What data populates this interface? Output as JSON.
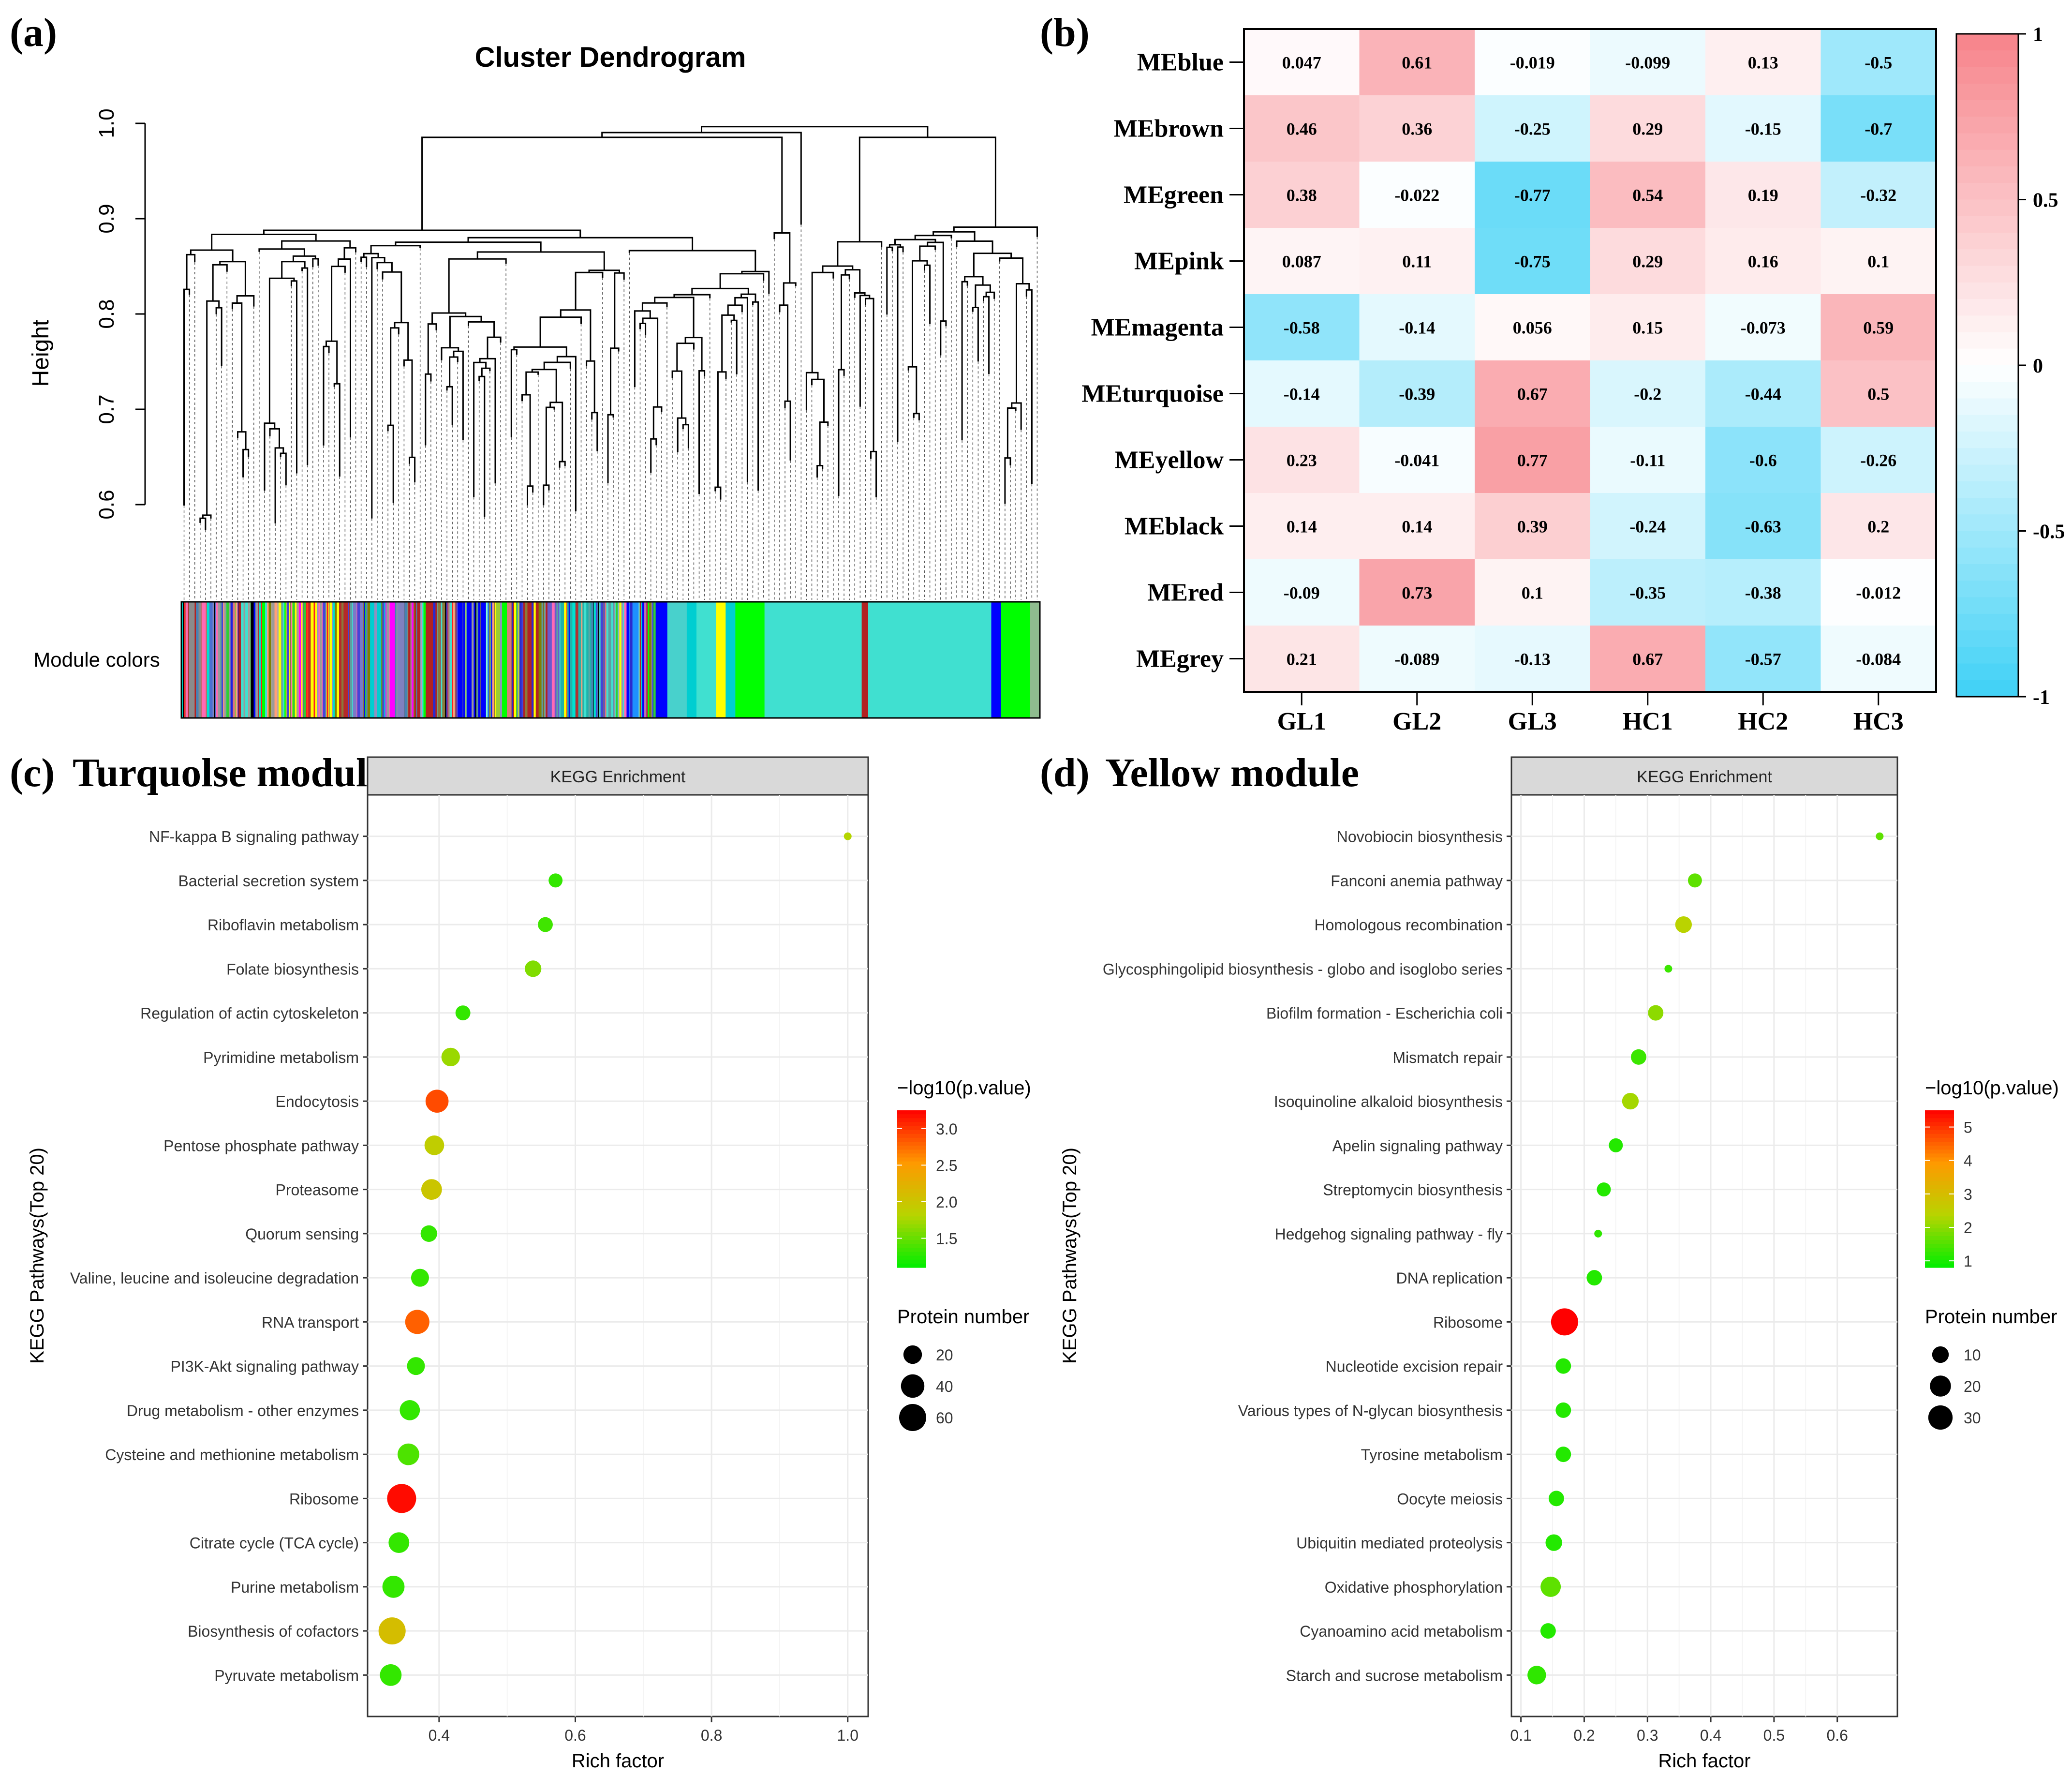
{
  "panel_labels": {
    "a": "(a)",
    "b": "(b)",
    "c": "(c)",
    "d": "(d)"
  },
  "chart_data": [
    {
      "type": "dendrogram",
      "title": "Cluster Dendrogram",
      "ylabel": "Height",
      "ylim": [
        0.5,
        1.0
      ],
      "yticks": [
        0.6,
        0.7,
        0.8,
        0.9,
        1.0
      ],
      "ytick_labels": [
        "0.6",
        "0.7",
        "0.8",
        "0.9",
        "1.0"
      ],
      "color_bar_label": "Module colors",
      "module_colors": [
        "#9a9a9a",
        "#66a3a3",
        "#d97a7a",
        "#4444d8",
        "#8a7a3a",
        "#00e0d0",
        "#9090c0",
        "#ff2020",
        "#2a2ad0",
        "#ffff00",
        "#b03030",
        "#5f9ea0",
        "#ff00ff",
        "#7fffd4",
        "#b22222",
        "#000000",
        "#0000ff",
        "#32cd32",
        "#40e0d0",
        "#ffa07a",
        "#00ff00",
        "#808000",
        "#4682b4",
        "#ff69b4"
      ],
      "color_segments": [
        {
          "color": "#8b8b8b",
          "w": 6
        },
        {
          "color": "#c86464",
          "w": 2
        },
        {
          "color": "#4a6fd0",
          "w": 3
        },
        {
          "color": "#9a9a9a",
          "w": 4
        },
        {
          "color": "#2020e0",
          "w": 3
        },
        {
          "color": "#40e0d0",
          "w": 5
        },
        {
          "color": "#ff1a1a",
          "w": 4
        },
        {
          "color": "#a9a9a9",
          "w": 3
        },
        {
          "color": "#ffff00",
          "w": 18
        },
        {
          "color": "#b52a2a",
          "w": 4
        },
        {
          "color": "#7a7ac8",
          "w": 6
        },
        {
          "color": "#00ced1",
          "w": 5
        },
        {
          "color": "#ff00ff",
          "w": 3
        },
        {
          "color": "#8080c0",
          "w": 4
        },
        {
          "color": "#b22222",
          "w": 10
        },
        {
          "color": "#40e0d0",
          "w": 4
        },
        {
          "color": "#0000ff",
          "w": 12
        },
        {
          "color": "#9acd32",
          "w": 3
        },
        {
          "color": "#00ff00",
          "w": 3
        },
        {
          "color": "#ffff00",
          "w": 3
        },
        {
          "color": "#b22222",
          "w": 8
        },
        {
          "color": "#6a5acd",
          "w": 4
        },
        {
          "color": "#20b2aa",
          "w": 10
        },
        {
          "color": "#000000",
          "w": 2
        },
        {
          "color": "#40e0d0",
          "w": 8
        },
        {
          "color": "#1e90ff",
          "w": 5
        },
        {
          "color": "#0000ff",
          "w": 8
        },
        {
          "color": "#48d1cc",
          "w": 6
        },
        {
          "color": "#00ced1",
          "w": 3
        },
        {
          "color": "#40e0d0",
          "w": 6
        },
        {
          "color": "#ffff00",
          "w": 3
        },
        {
          "color": "#00ced1",
          "w": 3
        },
        {
          "color": "#00ff00",
          "w": 9
        },
        {
          "color": "#40e0d0",
          "w": 30
        },
        {
          "color": "#b22222",
          "w": 2
        },
        {
          "color": "#40e0d0",
          "w": 38
        },
        {
          "color": "#0000ff",
          "w": 3
        },
        {
          "color": "#00ff00",
          "w": 9
        },
        {
          "color": "#8fbc8f",
          "w": 3
        }
      ],
      "leaf_count": 160
    },
    {
      "type": "heatmap",
      "rows": [
        "MEblue",
        "MEbrown",
        "MEgreen",
        "MEpink",
        "MEmagenta",
        "MEturquoise",
        "MEyellow",
        "MEblack",
        "MEred",
        "MEgrey"
      ],
      "columns": [
        "GL1",
        "GL2",
        "GL3",
        "HC1",
        "HC2",
        "HC3"
      ],
      "values": [
        [
          0.047,
          0.61,
          -0.019,
          -0.099,
          0.13,
          -0.5
        ],
        [
          0.46,
          0.36,
          -0.25,
          0.29,
          -0.15,
          -0.7
        ],
        [
          0.38,
          -0.022,
          -0.77,
          0.54,
          0.19,
          -0.32
        ],
        [
          0.087,
          0.11,
          -0.75,
          0.29,
          0.16,
          0.1
        ],
        [
          -0.58,
          -0.14,
          0.056,
          0.15,
          -0.073,
          0.59
        ],
        [
          -0.14,
          -0.39,
          0.67,
          -0.2,
          -0.44,
          0.5
        ],
        [
          0.23,
          -0.041,
          0.77,
          -0.11,
          -0.6,
          -0.26
        ],
        [
          0.14,
          0.14,
          0.39,
          -0.24,
          -0.63,
          0.2
        ],
        [
          -0.09,
          0.73,
          0.1,
          -0.35,
          -0.38,
          -0.012
        ],
        [
          0.21,
          -0.089,
          -0.13,
          0.67,
          -0.57,
          -0.084
        ]
      ],
      "labels": [
        [
          "0.047",
          "0.61",
          "-0.019",
          "-0.099",
          "0.13",
          "-0.5"
        ],
        [
          "0.46",
          "0.36",
          "-0.25",
          "0.29",
          "-0.15",
          "-0.7"
        ],
        [
          "0.38",
          "-0.022",
          "-0.77",
          "0.54",
          "0.19",
          "-0.32"
        ],
        [
          "0.087",
          "0.11",
          "-0.75",
          "0.29",
          "0.16",
          "0.1"
        ],
        [
          "-0.58",
          "-0.14",
          "0.056",
          "0.15",
          "-0.073",
          "0.59"
        ],
        [
          "-0.14",
          "-0.39",
          "0.67",
          "-0.2",
          "-0.44",
          "0.5"
        ],
        [
          "0.23",
          "-0.041",
          "0.77",
          "-0.11",
          "-0.6",
          "-0.26"
        ],
        [
          "0.14",
          "0.14",
          "0.39",
          "-0.24",
          "-0.63",
          "0.2"
        ],
        [
          "-0.09",
          "0.73",
          "0.1",
          "-0.35",
          "-0.38",
          "-0.012"
        ],
        [
          "0.21",
          "-0.089",
          "-0.13",
          "0.67",
          "-0.57",
          "-0.084"
        ]
      ],
      "colorscale": {
        "min": -1,
        "max": 1,
        "low": "#3fd1f6",
        "mid": "#ffffff",
        "high": "#f7838a"
      },
      "colorbar_ticks": [
        1,
        0.5,
        0,
        -0.5,
        -1
      ],
      "colorbar_tick_labels": [
        "1",
        "0.5",
        "0",
        "-0.5",
        "-1"
      ]
    },
    {
      "type": "scatter",
      "module_title": "Turquolse module",
      "strip_title": "KEGG Enrichment",
      "xlabel": "Rich factor",
      "ylabel": "KEGG Pathways(Top 20)",
      "xlim": [
        0.295,
        1.03
      ],
      "xticks": [
        0.4,
        0.6,
        0.8,
        1.0
      ],
      "xtick_labels": [
        "0.4",
        "0.6",
        "0.8",
        "1.0"
      ],
      "pathways": [
        "NF-kappa B signaling pathway",
        "Bacterial secretion system",
        "Riboflavin metabolism",
        "Folate biosynthesis",
        "Regulation of actin cytoskeleton",
        "Pyrimidine metabolism",
        "Endocytosis",
        "Pentose phosphate pathway",
        "Proteasome",
        "Quorum sensing",
        "Valine, leucine and isoleucine degradation",
        "RNA transport",
        "PI3K-Akt signaling pathway",
        "Drug metabolism - other enzymes",
        "Cysteine and methionine metabolism",
        "Ribosome",
        "Citrate cycle (TCA cycle)",
        "Purine metabolism",
        "Biosynthesis of cofactors",
        "Pyruvate metabolism"
      ],
      "rich_factor": [
        1.0,
        0.571,
        0.556,
        0.538,
        0.435,
        0.417,
        0.397,
        0.393,
        0.389,
        0.385,
        0.372,
        0.368,
        0.366,
        0.357,
        0.355,
        0.345,
        0.341,
        0.333,
        0.331,
        0.329
      ],
      "neg_log10_p": [
        1.8,
        1.3,
        1.35,
        1.6,
        1.3,
        1.7,
        2.9,
        1.9,
        2.0,
        1.3,
        1.3,
        2.8,
        1.3,
        1.3,
        1.4,
        3.2,
        1.3,
        1.3,
        2.1,
        1.3
      ],
      "protein_number": [
        2,
        8,
        10,
        14,
        10,
        20,
        38,
        24,
        28,
        14,
        18,
        44,
        18,
        26,
        32,
        72,
        28,
        34,
        60,
        32
      ],
      "color_legend_title": "−log10(p.value)",
      "color_range": [
        1.1,
        3.25
      ],
      "color_ticks": [
        1.5,
        2.0,
        2.5,
        3.0
      ],
      "color_tick_labels": [
        "1.5",
        "2.0",
        "2.5",
        "3.0"
      ],
      "size_legend_title": "Protein number",
      "size_range": [
        2,
        72
      ],
      "size_ticks": [
        20,
        40,
        60
      ],
      "size_tick_labels": [
        "20",
        "40",
        "60"
      ]
    },
    {
      "type": "scatter",
      "module_title": "Yellow module",
      "strip_title": "KEGG Enrichment",
      "xlabel": "Rich factor",
      "ylabel": "KEGG Pathways(Top 20)",
      "xlim": [
        0.085,
        0.695
      ],
      "xticks": [
        0.1,
        0.2,
        0.3,
        0.4,
        0.5,
        0.6
      ],
      "xtick_labels": [
        "0.1",
        "0.2",
        "0.3",
        "0.4",
        "0.5",
        "0.6"
      ],
      "pathways": [
        "Novobiocin biosynthesis",
        "Fanconi anemia pathway",
        "Homologous recombination",
        "Glycosphingolipid biosynthesis - globo and isoglobo series",
        "Biofilm formation - Escherichia coli",
        "Mismatch repair",
        "Isoquinoline alkaloid biosynthesis",
        "Apelin signaling pathway",
        "Streptomycin biosynthesis",
        "Hedgehog signaling pathway - fly",
        "DNA replication",
        "Ribosome",
        "Nucleotide excision repair",
        "Various types of N-glycan biosynthesis",
        "Tyrosine metabolism",
        "Oocyte meiosis",
        "Ubiquitin mediated proteolysis",
        "Oxidative phosphorylation",
        "Cyanoamino acid metabolism",
        "Starch and sucrose metabolism"
      ],
      "rich_factor": [
        0.667,
        0.375,
        0.357,
        0.333,
        0.313,
        0.286,
        0.273,
        0.25,
        0.231,
        0.222,
        0.216,
        0.169,
        0.167,
        0.167,
        0.167,
        0.156,
        0.152,
        0.147,
        0.143,
        0.125
      ],
      "neg_log10_p": [
        1.6,
        1.6,
        2.4,
        1.3,
        2.0,
        1.3,
        2.2,
        1.1,
        1.1,
        1.2,
        1.1,
        5.5,
        1.1,
        1.1,
        1.1,
        1.1,
        1.1,
        1.6,
        1.1,
        1.2
      ],
      "protein_number": [
        2,
        6,
        10,
        2,
        8,
        8,
        10,
        6,
        6,
        2,
        8,
        40,
        8,
        8,
        8,
        8,
        10,
        18,
        8,
        14
      ],
      "color_legend_title": "−log10(p.value)",
      "color_range": [
        0.8,
        5.5
      ],
      "color_ticks": [
        1,
        2,
        3,
        4,
        5
      ],
      "color_tick_labels": [
        "1",
        "2",
        "3",
        "4",
        "5"
      ],
      "size_legend_title": "Protein number",
      "size_range": [
        2,
        40
      ],
      "size_ticks": [
        10,
        20,
        30
      ],
      "size_tick_labels": [
        "10",
        "20",
        "30"
      ]
    }
  ]
}
